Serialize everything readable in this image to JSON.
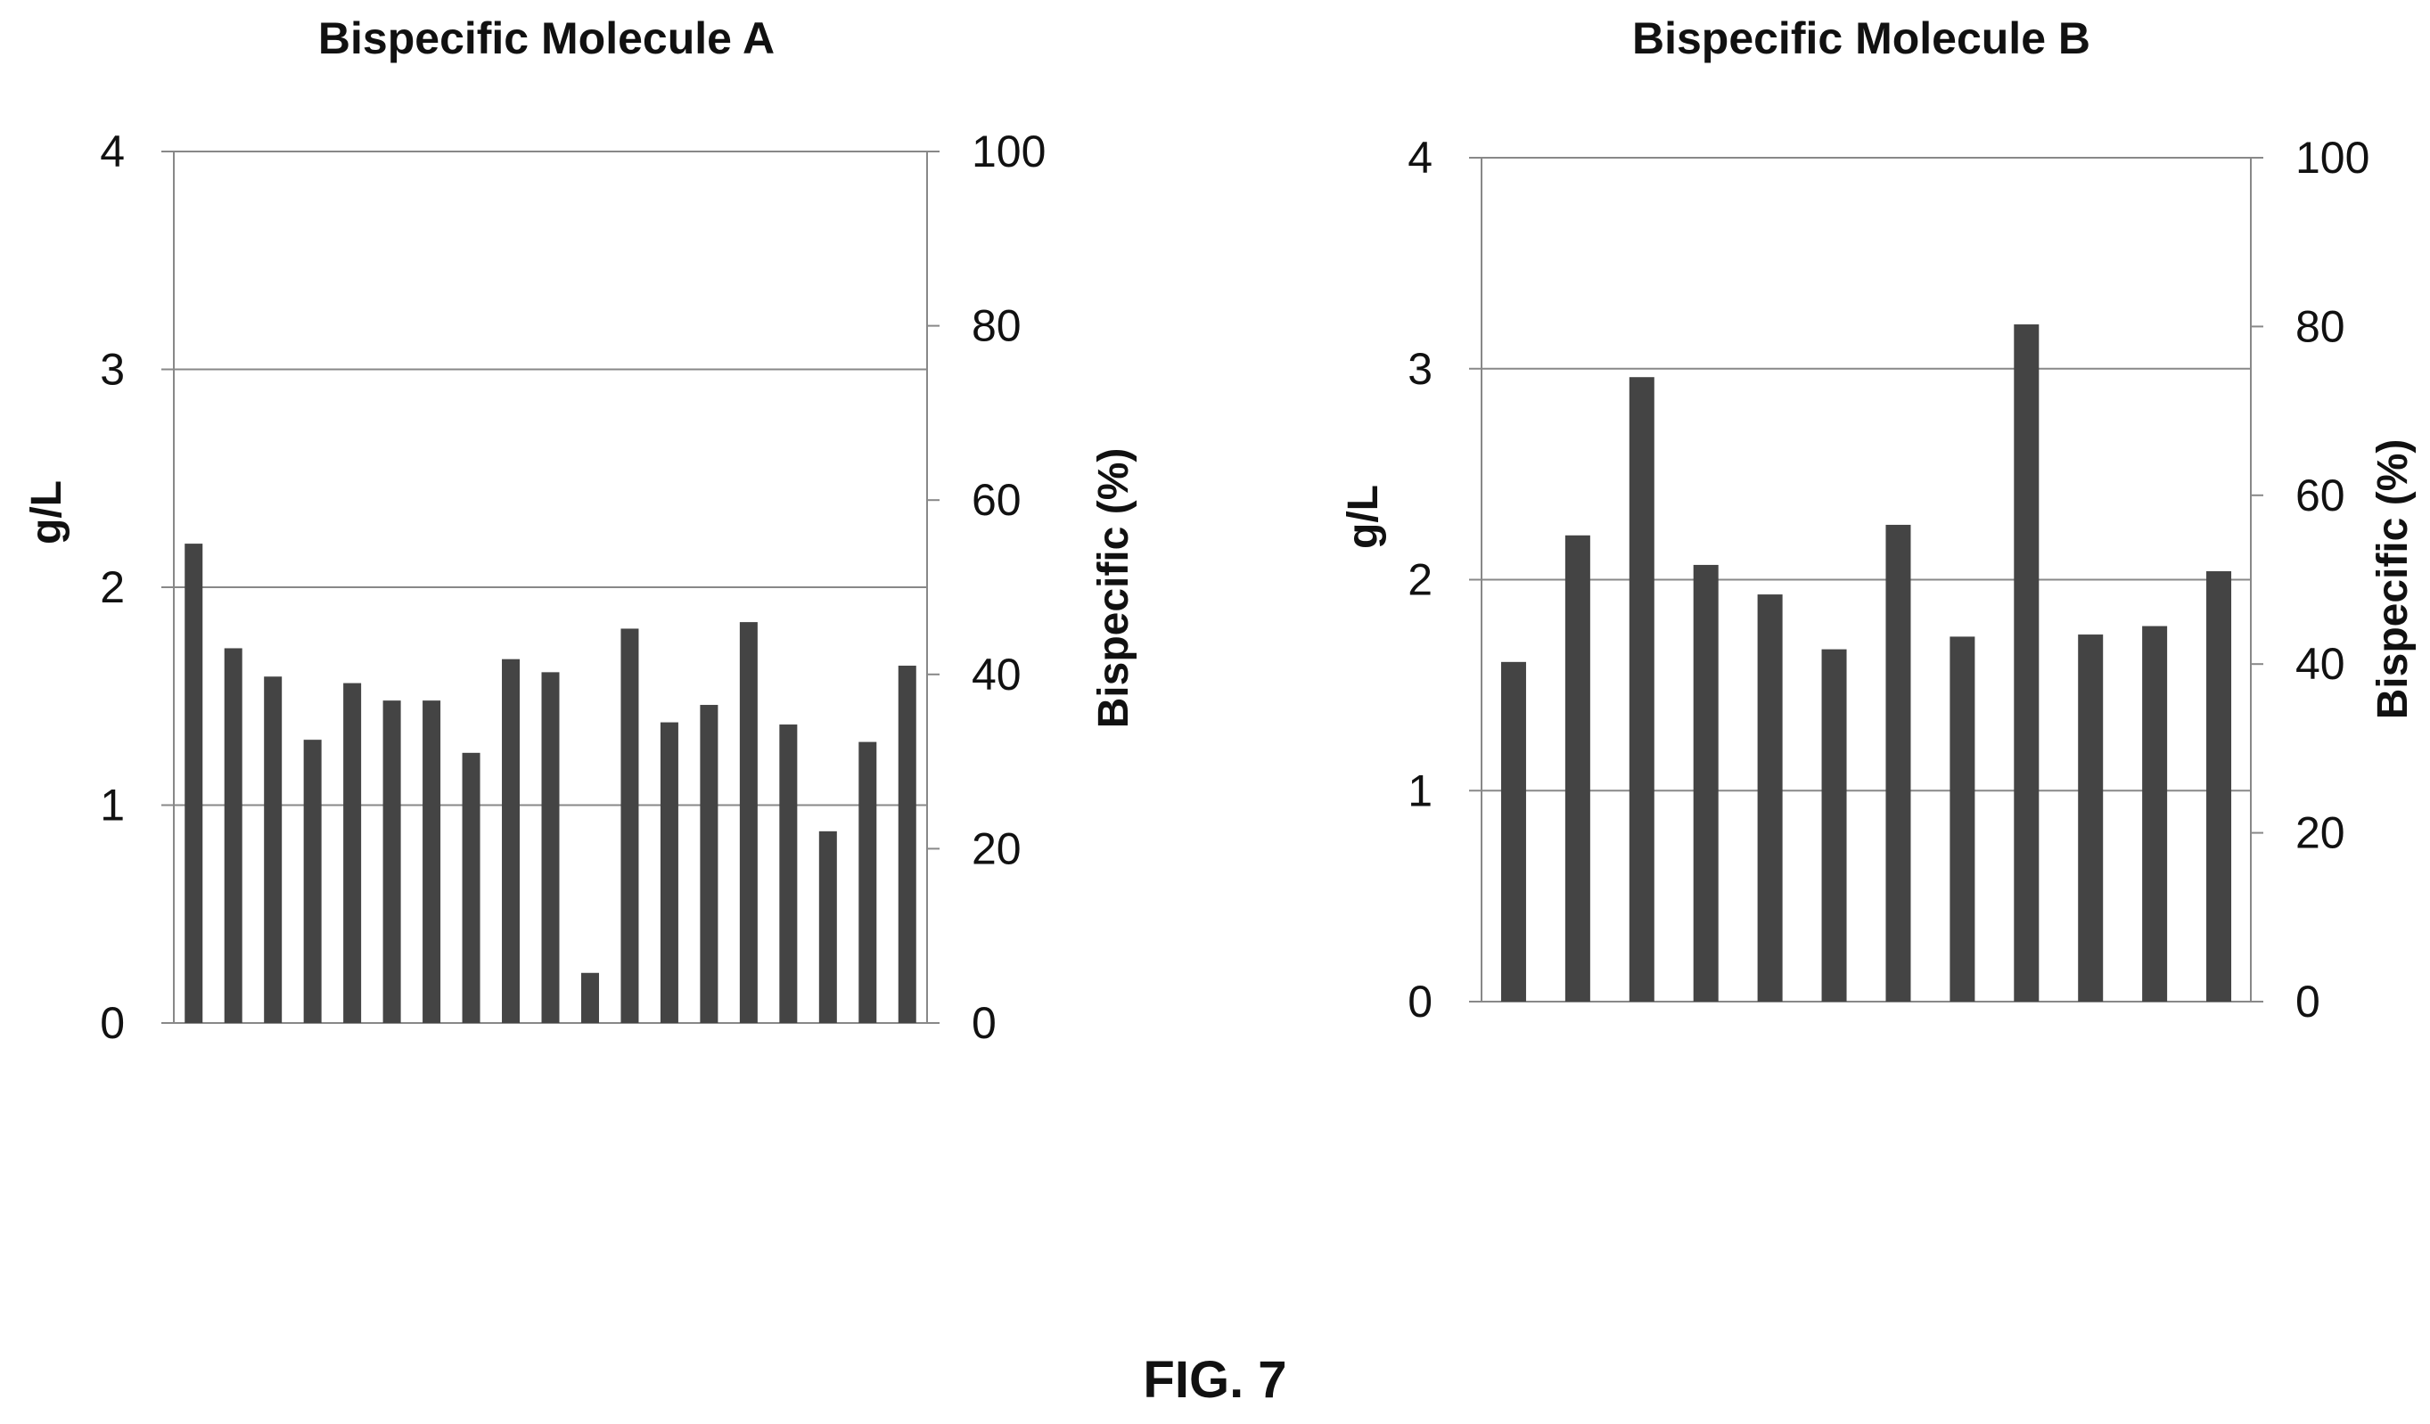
{
  "figure_label": "FIG. 7",
  "colors": {
    "bar": "#444444",
    "grid": "#888888",
    "text": "#111111"
  },
  "chart_data": [
    {
      "type": "bar",
      "title": "Bispecific Molecule A",
      "ylabel": "g/L",
      "y2label": "Bispecific (%)",
      "ylim": [
        0,
        4
      ],
      "y2lim": [
        0,
        100
      ],
      "yticks": [
        0,
        1,
        2,
        3,
        4
      ],
      "y2ticks": [
        0,
        20,
        40,
        60,
        80,
        100
      ],
      "grid": true,
      "values": [
        2.2,
        1.72,
        1.59,
        1.3,
        1.56,
        1.48,
        1.48,
        1.24,
        1.67,
        1.61,
        0.23,
        1.81,
        1.38,
        1.46,
        1.84,
        1.37,
        0.88,
        1.29,
        1.64
      ]
    },
    {
      "type": "bar",
      "title": "Bispecific Molecule B",
      "ylabel": "g/L",
      "y2label": "Bispecific (%)",
      "ylim": [
        0,
        4
      ],
      "y2lim": [
        0,
        100
      ],
      "yticks": [
        0,
        1,
        2,
        3,
        4
      ],
      "y2ticks": [
        0,
        20,
        40,
        60,
        80,
        100
      ],
      "grid": true,
      "values": [
        1.61,
        2.21,
        2.96,
        2.07,
        1.93,
        1.67,
        2.26,
        1.73,
        3.21,
        1.74,
        1.78,
        2.04
      ]
    }
  ]
}
